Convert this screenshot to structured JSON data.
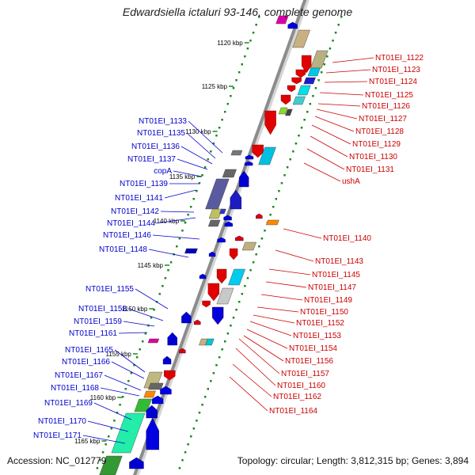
{
  "title": "Edwardsiella ictaluri 93-146, complete genome",
  "footer": {
    "accession": "Accession: NC_012779",
    "summary": "Topology: circular; Length: 3,812,315 bp; Genes: 3,894"
  },
  "colors": {
    "forward_labels": "#cc0000",
    "reverse_labels": "#0000cc",
    "backbone": "#8c8c8c",
    "ticks": "#1a8a1a"
  },
  "kbp_ticks": [
    "1120 kbp",
    "1125 kbp",
    "1130 kbp",
    "1135 kbp",
    "1140 kbp",
    "1145 kbp",
    "1150 kbp",
    "1155 kbp",
    "1160 kbp",
    "1165 kbp"
  ],
  "left_labels": [
    "NT01EI_1133",
    "NT01EI_1135",
    "NT01EI_1136",
    "NT01EI_1137",
    "copA",
    "NT01EI_1139",
    "NT01EI_1141",
    "NT01EI_1142",
    "NT01EI_1144",
    "NT01EI_1146",
    "NT01EI_1148",
    "NT01EI_1155",
    "NT01EI_1158",
    "NT01EI_1159",
    "NT01EI_1161",
    "NT01EI_1165",
    "NT01EI_1166",
    "NT01EI_1167",
    "NT01EI_1168",
    "NT01EI_1169",
    "NT01EI_1170",
    "NT01EI_1171"
  ],
  "right_labels": [
    "NT01EI_1122",
    "NT01EI_1123",
    "NT01EI_1124",
    "NT01EI_1125",
    "NT01EI_1126",
    "NT01EI_1127",
    "NT01EI_1128",
    "NT01EI_1129",
    "NT01EI_1130",
    "NT01EI_1131",
    "ushA",
    "NT01EI_1140",
    "NT01EI_1143",
    "NT01EI_1145",
    "NT01EI_1147",
    "NT01EI_1149",
    "NT01EI_1150",
    "NT01EI_1152",
    "NT01EI_1153",
    "NT01EI_1154",
    "NT01EI_1156",
    "NT01EI_1157",
    "NT01EI_1160",
    "NT01EI_1162",
    "NT01EI_1164"
  ]
}
